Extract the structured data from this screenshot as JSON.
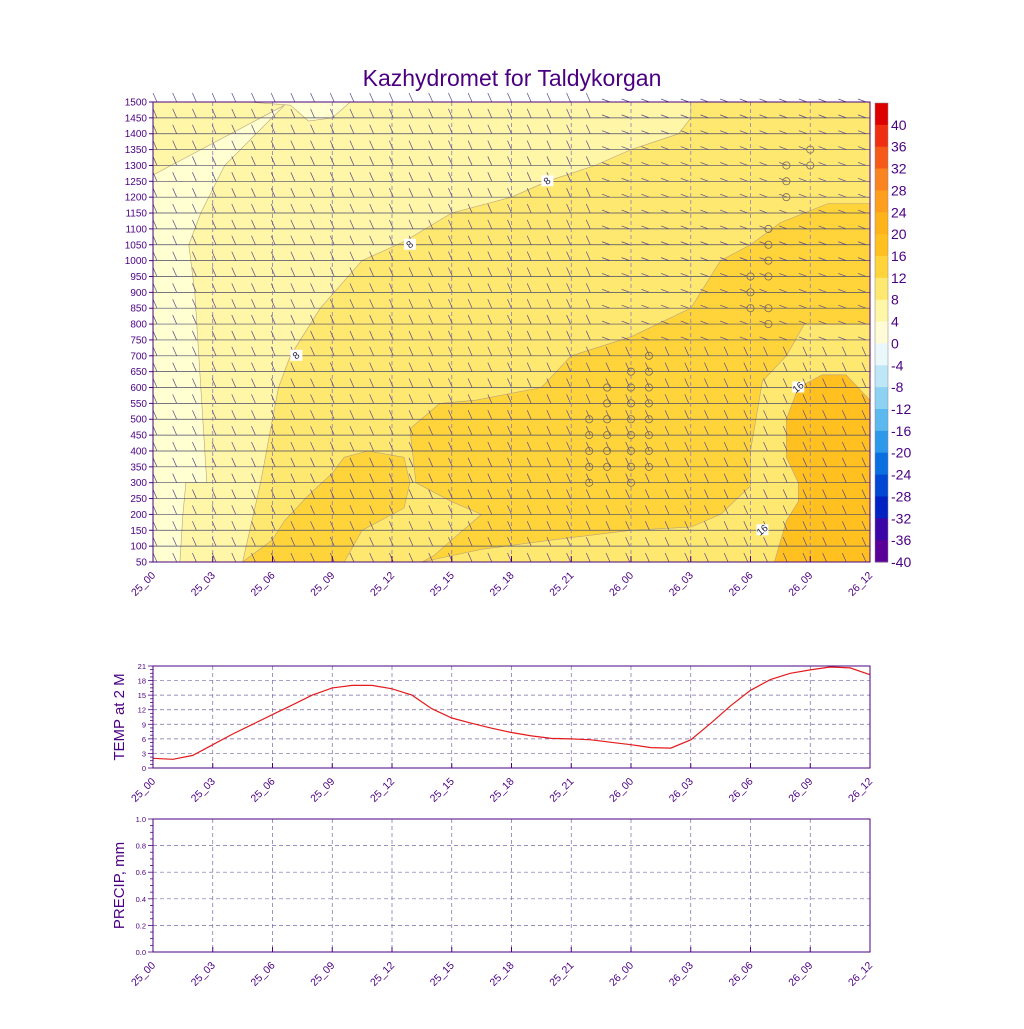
{
  "colors": {
    "axis": "#4b0082",
    "text": "#4b0082",
    "line": "#e41a1c",
    "grid": "#7b68a8"
  },
  "chart_data": [
    {
      "type": "heatmap",
      "title": "Kazhydromet for Taldykorgan",
      "x_tick_labels": [
        "25_00",
        "25_03",
        "25_06",
        "25_09",
        "25_12",
        "25_15",
        "25_18",
        "25_21",
        "26_00",
        "26_03",
        "26_06",
        "26_09",
        "26_12"
      ],
      "y_tick_labels": [
        "1500",
        "1450",
        "1400",
        "1350",
        "1300",
        "1250",
        "1200",
        "1150",
        "1100",
        "1050",
        "1000",
        "950",
        "900",
        "850",
        "800",
        "750",
        "700",
        "650",
        "600",
        "550",
        "500",
        "450",
        "400",
        "350",
        "300",
        "250",
        "200",
        "150",
        "100",
        "50"
      ],
      "ylim": [
        50,
        1500
      ],
      "colorbar": {
        "labels": [
          "40",
          "36",
          "32",
          "28",
          "24",
          "20",
          "16",
          "12",
          "8",
          "4",
          "0",
          "-4",
          "-8",
          "-12",
          "-16",
          "-20",
          "-24",
          "-28",
          "-32",
          "-36",
          "-40"
        ],
        "colors": [
          "#dd0000",
          "#ef2e12",
          "#f65a18",
          "#fa8420",
          "#fd9f1d",
          "#ffb31a",
          "#ffc020",
          "#ffd43a",
          "#ffe870",
          "#fff6a8",
          "#fffbd6",
          "#eaf7fb",
          "#bde7f7",
          "#8dd2f3",
          "#5cb9ef",
          "#2d99ea",
          "#0a6fe0",
          "#0048d4",
          "#0022c2",
          "#3a06a8",
          "#5a0098"
        ]
      },
      "contour_labels": [
        "8",
        "8",
        "8",
        "16",
        "16"
      ],
      "contours": [
        {
          "level": "4",
          "color": "#fff6a8",
          "points": [
            [
              0,
              1270
            ],
            [
              0,
              1500
            ],
            [
              1.6,
              1500
            ],
            [
              2.3,
              1490
            ],
            [
              2.6,
              1440
            ],
            [
              3.0,
              1450
            ],
            [
              3.3,
              1500
            ],
            [
              12,
              1500
            ],
            [
              12,
              50
            ],
            [
              0.45,
              50
            ],
            [
              0.5,
              200
            ],
            [
              0.55,
              300
            ],
            [
              0.9,
              300
            ],
            [
              0.8,
              600
            ],
            [
              0.7,
              900
            ],
            [
              0.6,
              1050
            ],
            [
              0.8,
              1150
            ],
            [
              1.2,
              1300
            ],
            [
              2.2,
              1490
            ]
          ]
        },
        {
          "level": "8",
          "color": "#ffe870",
          "points": [
            [
              0.6,
              50
            ],
            [
              1.5,
              50
            ],
            [
              1.8,
              300
            ],
            [
              2.1,
              600
            ],
            [
              2.3,
              700
            ],
            [
              2.8,
              850
            ],
            [
              3.5,
              1000
            ],
            [
              4.2,
              1060
            ],
            [
              5.0,
              1150
            ],
            [
              6.0,
              1200
            ],
            [
              6.6,
              1250
            ],
            [
              7.4,
              1300
            ],
            [
              8.0,
              1350
            ],
            [
              8.8,
              1400
            ],
            [
              9.0,
              1450
            ],
            [
              9.0,
              1500
            ],
            [
              12,
              1500
            ],
            [
              12,
              50
            ]
          ]
        },
        {
          "level": "12",
          "color": "#ffd43a",
          "points": [
            [
              4.5,
              50
            ],
            [
              5.5,
              90
            ],
            [
              6.7,
              120
            ],
            [
              8.0,
              150
            ],
            [
              9.0,
              160
            ],
            [
              9.5,
              200
            ],
            [
              10.0,
              290
            ],
            [
              10.0,
              400
            ],
            [
              10.2,
              620
            ],
            [
              10.6,
              700
            ],
            [
              10.9,
              800
            ],
            [
              12,
              800
            ],
            [
              12,
              1180
            ],
            [
              11.3,
              1180
            ],
            [
              10.5,
              1120
            ],
            [
              10.0,
              1050
            ],
            [
              9.5,
              1000
            ],
            [
              9.0,
              850
            ],
            [
              8.0,
              760
            ],
            [
              7.0,
              700
            ],
            [
              6.5,
              600
            ],
            [
              5.4,
              560
            ],
            [
              4.8,
              550
            ],
            [
              4.3,
              470
            ],
            [
              4.4,
              300
            ],
            [
              5.0,
              240
            ],
            [
              5.5,
              200
            ],
            [
              5.0,
              120
            ],
            [
              4.7,
              70
            ]
          ]
        },
        {
          "level": "12b",
          "color": "#ffd43a",
          "points": [
            [
              1.5,
              50
            ],
            [
              2.4,
              50
            ],
            [
              3.2,
              50
            ],
            [
              3.5,
              150
            ],
            [
              4.2,
              220
            ],
            [
              4.3,
              300
            ],
            [
              4.2,
              380
            ],
            [
              3.6,
              400
            ],
            [
              3.2,
              380
            ],
            [
              3.0,
              330
            ],
            [
              2.6,
              260
            ],
            [
              2.2,
              180
            ],
            [
              2.0,
              120
            ]
          ]
        },
        {
          "level": "16",
          "color": "#ffc020",
          "points": [
            [
              10.4,
              50
            ],
            [
              12,
              50
            ],
            [
              12,
              560
            ],
            [
              11.6,
              640
            ],
            [
              11.2,
              640
            ],
            [
              10.8,
              600
            ],
            [
              10.6,
              500
            ],
            [
              10.6,
              380
            ],
            [
              10.8,
              300
            ],
            [
              10.8,
              240
            ],
            [
              10.6,
              180
            ]
          ]
        }
      ],
      "circle_markers": [
        [
          7.3,
          500
        ],
        [
          7.3,
          450
        ],
        [
          7.3,
          400
        ],
        [
          7.3,
          350
        ],
        [
          7.3,
          300
        ],
        [
          7.6,
          600
        ],
        [
          7.6,
          550
        ],
        [
          7.6,
          500
        ],
        [
          7.6,
          450
        ],
        [
          7.6,
          400
        ],
        [
          7.6,
          350
        ],
        [
          8.0,
          650
        ],
        [
          8.0,
          600
        ],
        [
          8.0,
          550
        ],
        [
          8.0,
          500
        ],
        [
          8.0,
          450
        ],
        [
          8.0,
          400
        ],
        [
          8.0,
          350
        ],
        [
          8.0,
          300
        ],
        [
          8.3,
          700
        ],
        [
          8.3,
          650
        ],
        [
          8.3,
          600
        ],
        [
          8.3,
          550
        ],
        [
          8.3,
          500
        ],
        [
          8.3,
          450
        ],
        [
          8.3,
          400
        ],
        [
          8.3,
          350
        ],
        [
          10.0,
          950
        ],
        [
          10.0,
          900
        ],
        [
          10.0,
          850
        ],
        [
          10.3,
          1100
        ],
        [
          10.3,
          1050
        ],
        [
          10.3,
          1000
        ],
        [
          10.3,
          950
        ],
        [
          10.3,
          850
        ],
        [
          10.3,
          800
        ],
        [
          10.6,
          1300
        ],
        [
          10.6,
          1250
        ],
        [
          10.6,
          1200
        ],
        [
          11.0,
          1350
        ],
        [
          11.0,
          1300
        ]
      ]
    },
    {
      "type": "line",
      "ylabel": "TEMP at 2 M",
      "x_tick_labels": [
        "25_00",
        "25_03",
        "25_06",
        "25_09",
        "25_12",
        "25_15",
        "25_18",
        "25_21",
        "26_00",
        "26_03",
        "26_06",
        "26_09",
        "26_12"
      ],
      "y_tick_labels": [
        "0",
        "3",
        "6",
        "9",
        "12",
        "15",
        "18",
        "21"
      ],
      "ylim": [
        0,
        21
      ],
      "x": [
        0,
        1,
        2,
        3,
        4,
        5,
        6,
        7,
        8,
        9,
        10,
        11,
        12,
        13,
        14,
        15,
        16,
        17,
        18,
        19,
        20,
        21,
        22,
        23,
        24,
        25,
        26,
        27,
        28,
        29,
        30,
        31,
        32,
        33,
        34,
        35,
        36
      ],
      "values": [
        2.0,
        1.8,
        2.6,
        4.8,
        7.0,
        9.0,
        11.0,
        13.0,
        15.0,
        16.5,
        17.0,
        17.0,
        16.3,
        15.0,
        12.2,
        10.3,
        9.2,
        8.2,
        7.3,
        6.6,
        6.1,
        6.0,
        5.8,
        5.3,
        4.8,
        4.2,
        4.1,
        5.8,
        9.2,
        12.8,
        16.0,
        18.2,
        19.5,
        20.2,
        20.8,
        20.6,
        19.2
      ],
      "grid": true
    },
    {
      "type": "line",
      "ylabel": "PRECIP, mm",
      "x_tick_labels": [
        "25_00",
        "25_03",
        "25_06",
        "25_09",
        "25_12",
        "25_15",
        "25_18",
        "25_21",
        "26_00",
        "26_03",
        "26_06",
        "26_09",
        "26_12"
      ],
      "y_tick_labels": [
        "0.0",
        "0.2",
        "0.4",
        "0.6",
        "0.8",
        "1.0"
      ],
      "ylim": [
        0,
        1
      ],
      "x": [],
      "values": [],
      "grid": true
    }
  ]
}
